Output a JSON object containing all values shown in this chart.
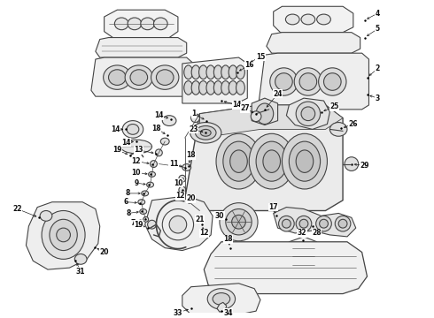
{
  "bg_color": "#ffffff",
  "line_color": "#444444",
  "label_color": "#111111",
  "figsize": [
    4.9,
    3.6
  ],
  "dpi": 100,
  "lw": 0.8,
  "fs": 5.5
}
